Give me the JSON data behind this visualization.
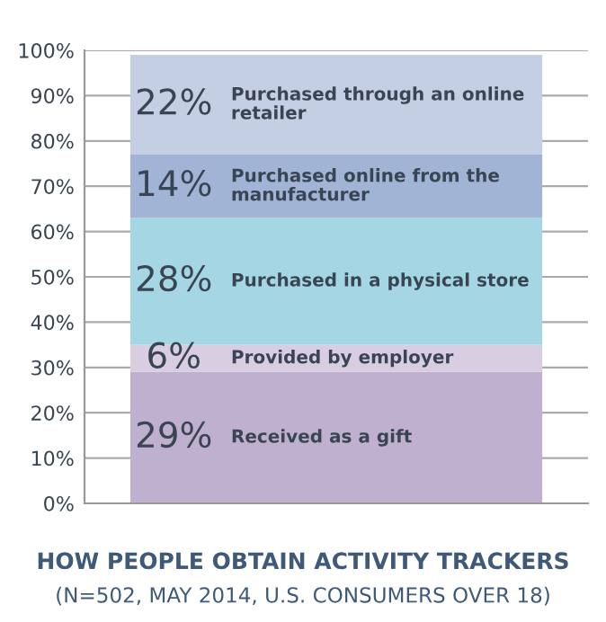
{
  "chart_data": {
    "type": "bar",
    "stacked": true,
    "title": "HOW PEOPLE OBTAIN ACTIVITY TRACKERS",
    "subtitle": "(N=502, MAY 2014, U.S. CONSUMERS OVER 18)",
    "categories": [
      null
    ],
    "series": [
      {
        "name": "Received as a gift",
        "color": "#bfb0d0",
        "values": [
          29
        ],
        "value_labels": [
          "29%"
        ]
      },
      {
        "name": "Provided by employer",
        "color": "#d9cde2",
        "values": [
          6
        ],
        "value_labels": [
          "6%"
        ]
      },
      {
        "name": "Purchased in a physical store",
        "color": "#a4d7e3",
        "values": [
          28
        ],
        "value_labels": [
          "28%"
        ]
      },
      {
        "name": "Purchased online from the\nmanufacturer",
        "color": "#a2b4d6",
        "values": [
          14
        ],
        "value_labels": [
          "14%"
        ]
      },
      {
        "name": "Purchased through an online\nretailer",
        "color": "#c5cfe3",
        "values": [
          22
        ],
        "value_labels": [
          "22%"
        ]
      }
    ],
    "ylim": [
      0,
      100
    ],
    "yticks": [
      {
        "value": 0,
        "label": "0%"
      },
      {
        "value": 10,
        "label": "10%"
      },
      {
        "value": 20,
        "label": "20%"
      },
      {
        "value": 30,
        "label": "30%"
      },
      {
        "value": 40,
        "label": "40%"
      },
      {
        "value": 50,
        "label": "50%"
      },
      {
        "value": 60,
        "label": "60%"
      },
      {
        "value": 70,
        "label": "70%"
      },
      {
        "value": 80,
        "label": "80%"
      },
      {
        "value": 90,
        "label": "90%"
      },
      {
        "value": 100,
        "label": "100%"
      }
    ],
    "grid": "y"
  }
}
